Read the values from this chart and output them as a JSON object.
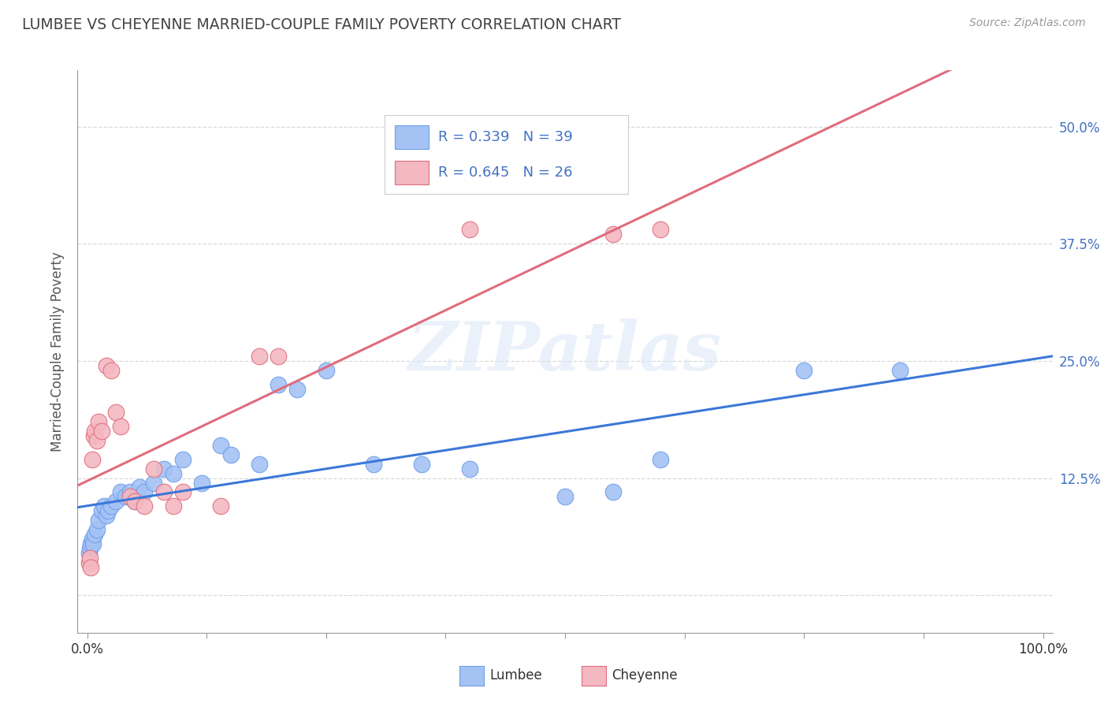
{
  "title": "LUMBEE VS CHEYENNE MARRIED-COUPLE FAMILY POVERTY CORRELATION CHART",
  "source": "Source: ZipAtlas.com",
  "ylabel": "Married-Couple Family Poverty",
  "lumbee_color": "#a4c2f4",
  "lumbee_edge_color": "#6d9eeb",
  "cheyenne_color": "#f4b8c1",
  "cheyenne_edge_color": "#e06c7d",
  "lumbee_line_color": "#3c78d8",
  "cheyenne_line_color": "#e06c7d",
  "lumbee_R": 0.339,
  "lumbee_N": 39,
  "cheyenne_R": 0.645,
  "cheyenne_N": 26,
  "xlim": [
    -1,
    101
  ],
  "ylim": [
    -4,
    56
  ],
  "lumbee_x": [
    0.2,
    0.3,
    0.4,
    0.5,
    0.6,
    0.8,
    1.0,
    1.2,
    1.5,
    1.8,
    2.0,
    2.2,
    2.5,
    3.0,
    3.5,
    4.0,
    4.5,
    5.0,
    5.5,
    6.0,
    7.0,
    8.0,
    9.0,
    10.0,
    12.0,
    14.0,
    15.0,
    18.0,
    20.0,
    22.0,
    25.0,
    30.0,
    35.0,
    40.0,
    50.0,
    55.0,
    60.0,
    75.0,
    85.0
  ],
  "lumbee_y": [
    4.5,
    5.0,
    5.5,
    6.0,
    5.5,
    6.5,
    7.0,
    8.0,
    9.0,
    9.5,
    8.5,
    9.0,
    9.5,
    10.0,
    11.0,
    10.5,
    11.0,
    10.0,
    11.5,
    11.0,
    12.0,
    13.5,
    13.0,
    14.5,
    12.0,
    16.0,
    15.0,
    14.0,
    22.5,
    22.0,
    24.0,
    14.0,
    14.0,
    13.5,
    10.5,
    11.0,
    14.5,
    24.0,
    24.0
  ],
  "cheyenne_x": [
    0.2,
    0.3,
    0.4,
    0.5,
    0.7,
    0.8,
    1.0,
    1.2,
    1.5,
    2.0,
    2.5,
    3.0,
    3.5,
    4.5,
    5.0,
    6.0,
    7.0,
    8.0,
    9.0,
    10.0,
    14.0,
    18.0,
    20.0,
    40.0,
    55.0,
    60.0
  ],
  "cheyenne_y": [
    3.5,
    4.0,
    3.0,
    14.5,
    17.0,
    17.5,
    16.5,
    18.5,
    17.5,
    24.5,
    24.0,
    19.5,
    18.0,
    10.5,
    10.0,
    9.5,
    13.5,
    11.0,
    9.5,
    11.0,
    9.5,
    25.5,
    25.5,
    39.0,
    38.5,
    39.0
  ],
  "ytick_vals": [
    0,
    12.5,
    25.0,
    37.5,
    50.0
  ],
  "ytick_labels": [
    "",
    "12.5%",
    "25.0%",
    "37.5%",
    "50.0%"
  ],
  "xtick_vals": [
    0,
    12.5,
    25.0,
    37.5,
    50.0,
    62.5,
    75.0,
    87.5,
    100.0
  ],
  "xtick_labels": [
    "0.0%",
    "",
    "",
    "",
    "",
    "",
    "",
    "",
    "100.0%"
  ],
  "grid_color": "#d9d9d9",
  "tick_color": "#999999",
  "label_color": "#4472c4",
  "title_color": "#434343",
  "source_color": "#999999"
}
